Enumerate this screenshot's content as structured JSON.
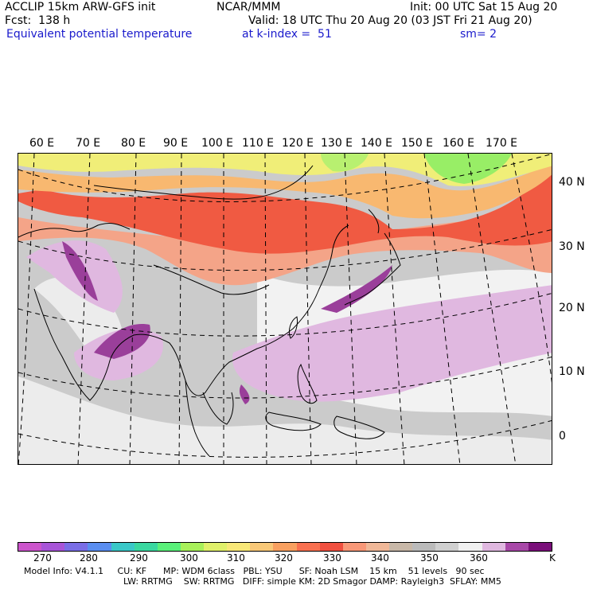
{
  "header": {
    "model": "ACCLIP 15km ARW-GFS init",
    "org": "NCAR/MMM",
    "init": "Init: 00 UTC Sat 15 Aug 20",
    "fcst": "Fcst:  138 h",
    "valid": "Valid: 18 UTC Thu 20 Aug 20 (03 JST Fri 21 Aug 20)",
    "field": "Equivalent potential temperature",
    "level": "at k-index =  51",
    "smooth": "sm= 2"
  },
  "map": {
    "lon_labels": [
      "60 E",
      "70 E",
      "80 E",
      "90 E",
      "100 E",
      "110 E",
      "120 E",
      "130 E",
      "140 E",
      "150 E",
      "160 E",
      "170 E"
    ],
    "lat_labels": [
      "40 N",
      "30 N",
      "20 N",
      "10 N",
      "0"
    ]
  },
  "colorbar": {
    "colors": [
      "#cc55cc",
      "#a855d8",
      "#7a6ee6",
      "#5a8ef0",
      "#3ac8c8",
      "#3ad8a0",
      "#5af07a",
      "#a8f05a",
      "#e0f06a",
      "#f8e878",
      "#f8c878",
      "#f8a060",
      "#f87050",
      "#f05040",
      "#f89878",
      "#f0b898",
      "#c8b8a8",
      "#bbbbbb",
      "#d0d0d0",
      "#f0f0f0",
      "#e0b8e0",
      "#a848a8",
      "#7a0f7a"
    ],
    "labels": [
      "270",
      "280",
      "290",
      "300",
      "310",
      "320",
      "330",
      "340",
      "350",
      "360"
    ],
    "unit": "K"
  },
  "footer": {
    "line1": "Model Info: V4.1.1     CU: KF      MP: WDM 6class   PBL: YSU      SF: Noah LSM    15 km    51 levels   90 sec",
    "line2": "LW: RRTMG    SW: RRTMG   DIFF: simple KM: 2D Smagor DAMP: Rayleigh3  SFLAY: MM5"
  }
}
